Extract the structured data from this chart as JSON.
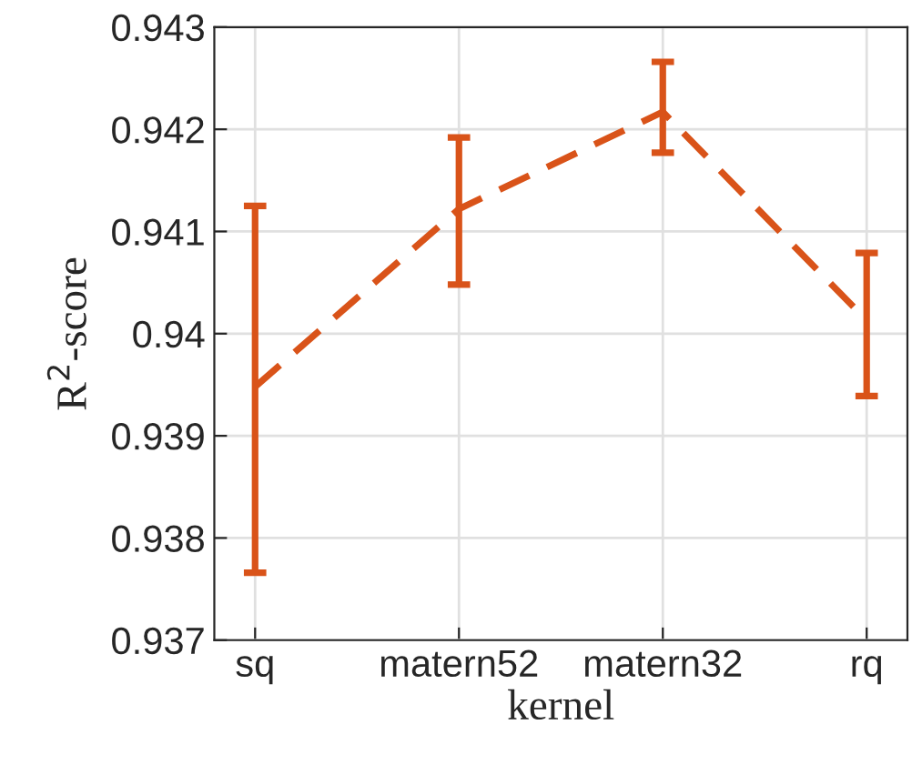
{
  "chart_data": {
    "type": "line",
    "xlabel": "kernel",
    "ylabel": "R$^{2}$-score",
    "categories": [
      "sq",
      "matern52",
      "matern32",
      "rq"
    ],
    "series": [
      {
        "color": "#d95319",
        "values": [
          0.93948,
          0.94122,
          0.94217,
          0.94013
        ],
        "errors": [
          [
            0.93766,
            0.94125
          ],
          [
            0.94048,
            0.94192
          ],
          [
            0.94177,
            0.94266
          ],
          [
            0.93939,
            0.94079
          ]
        ]
      }
    ],
    "ylim": [
      0.937,
      0.943
    ],
    "yticks": [
      0.937,
      0.938,
      0.939,
      0.94,
      0.941,
      0.942,
      0.943
    ],
    "grid": true,
    "line_style": "dashed",
    "marker": "none"
  }
}
